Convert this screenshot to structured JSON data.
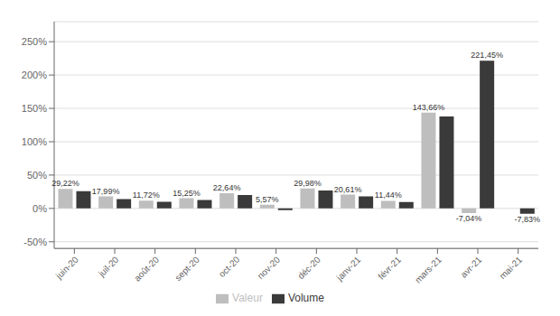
{
  "chart_data": {
    "type": "bar",
    "categories": [
      "juin-20",
      "juil-20",
      "août-20",
      "sept-20",
      "oct-20",
      "nov-20",
      "déc-20",
      "janv-21",
      "févr-21",
      "mars-21",
      "avr-21",
      "mai-21"
    ],
    "series": [
      {
        "name": "Valeur",
        "color": "#bebebe",
        "values": [
          29.22,
          17.99,
          11.72,
          15.25,
          22.64,
          5.57,
          29.98,
          20.61,
          11.44,
          143.66,
          -7.04,
          null
        ],
        "value_labels": [
          "29,22%",
          "17,99%",
          "11,72%",
          "15,25%",
          "22,64%",
          "5,57%",
          "29,98%",
          "20,61%",
          "11,44%",
          "143,66%",
          "-7,04%",
          null
        ]
      },
      {
        "name": "Volume",
        "color": "#3a3a3a",
        "values": [
          26.0,
          14.0,
          10.0,
          12.5,
          20.0,
          -2.5,
          27.0,
          18.0,
          9.5,
          138.0,
          221.45,
          -7.83
        ],
        "value_labels": [
          null,
          null,
          null,
          null,
          null,
          null,
          null,
          null,
          null,
          null,
          "221,45%",
          "-7,83%"
        ]
      }
    ],
    "ylim": [
      -60,
      280
    ],
    "yticks": [
      {
        "value": -50,
        "label": "-50%"
      },
      {
        "value": 0,
        "label": "0%"
      },
      {
        "value": 50,
        "label": "50%"
      },
      {
        "value": 100,
        "label": "100%"
      },
      {
        "value": 150,
        "label": "150%"
      },
      {
        "value": 200,
        "label": "200%"
      },
      {
        "value": 250,
        "label": "250%"
      }
    ],
    "grid": true,
    "legend": "bottom",
    "data_labels": true
  }
}
